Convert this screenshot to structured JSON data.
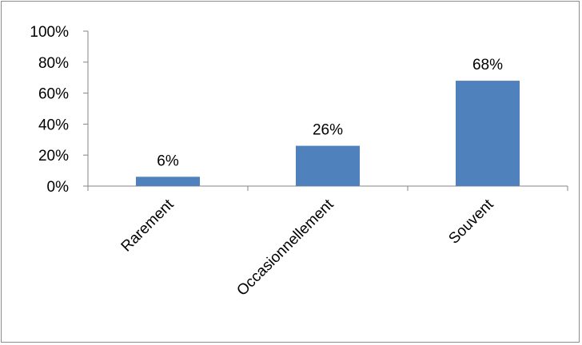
{
  "chart_data": {
    "type": "bar",
    "categories": [
      "Rarement",
      "Occasionnellement",
      "Souvent"
    ],
    "values": [
      6,
      26,
      68
    ],
    "data_labels": [
      "6%",
      "26%",
      "68%"
    ],
    "y_ticks": [
      "0%",
      "20%",
      "40%",
      "60%",
      "80%",
      "100%"
    ],
    "ylim": [
      0,
      100
    ],
    "bar_color": "#4f81bd",
    "grid": false,
    "legend": "none",
    "title": "",
    "xlabel": "",
    "ylabel": ""
  }
}
